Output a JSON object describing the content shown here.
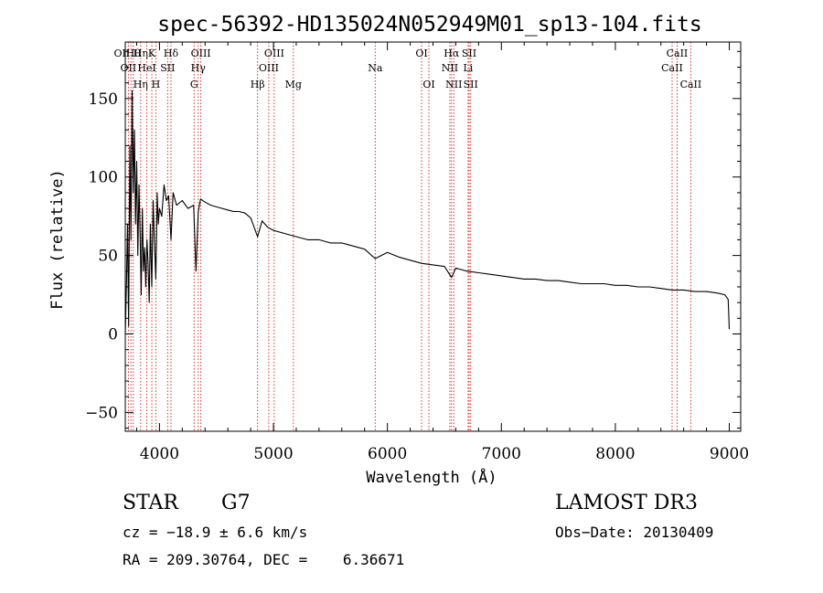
{
  "chart_data": {
    "type": "line",
    "title": "spec-56392-HD135024N052949M01_sp13-104.fits",
    "xlabel": "Wavelength (Å)",
    "ylabel": "Flux (relative)",
    "xlim": [
      3700,
      9100
    ],
    "ylim": [
      -62,
      186
    ],
    "xticks": [
      4000,
      5000,
      6000,
      7000,
      8000,
      9000
    ],
    "xtick_labels": [
      "4000",
      "5000",
      "6000",
      "7000",
      "8000",
      "9000"
    ],
    "yticks": [
      -50,
      0,
      50,
      100,
      150
    ],
    "ytick_labels": [
      "−50",
      "0",
      "50",
      "100",
      "150"
    ],
    "grid": false,
    "series": [
      {
        "name": "flux",
        "x": [
          3700,
          3710,
          3720,
          3730,
          3740,
          3750,
          3760,
          3770,
          3780,
          3790,
          3800,
          3810,
          3820,
          3830,
          3840,
          3850,
          3860,
          3870,
          3880,
          3890,
          3900,
          3910,
          3920,
          3933,
          3945,
          3955,
          3968,
          3980,
          3990,
          4000,
          4020,
          4040,
          4060,
          4080,
          4101,
          4120,
          4150,
          4200,
          4250,
          4300,
          4320,
          4340,
          4360,
          4400,
          4450,
          4500,
          4550,
          4600,
          4650,
          4700,
          4750,
          4800,
          4861,
          4900,
          4950,
          5000,
          5100,
          5200,
          5300,
          5400,
          5500,
          5600,
          5700,
          5800,
          5893,
          6000,
          6100,
          6200,
          6300,
          6400,
          6500,
          6563,
          6600,
          6700,
          6800,
          6900,
          7000,
          7100,
          7200,
          7300,
          7400,
          7500,
          7600,
          7700,
          7800,
          7900,
          8000,
          8100,
          8200,
          8300,
          8400,
          8500,
          8600,
          8700,
          8800,
          8900,
          8960,
          8990,
          9000
        ],
        "y": [
          0,
          30,
          70,
          5,
          120,
          60,
          155,
          90,
          130,
          70,
          110,
          50,
          95,
          65,
          25,
          80,
          40,
          55,
          30,
          60,
          45,
          20,
          70,
          30,
          85,
          60,
          35,
          90,
          70,
          80,
          75,
          95,
          85,
          88,
          60,
          90,
          82,
          85,
          80,
          82,
          40,
          78,
          86,
          84,
          82,
          81,
          80,
          79,
          78,
          78,
          77,
          74,
          62,
          72,
          68,
          66,
          64,
          62,
          60,
          60,
          58,
          58,
          56,
          54,
          48,
          52,
          49,
          47,
          45,
          44,
          43,
          36,
          42,
          40,
          39,
          38,
          37,
          36,
          35,
          35,
          34,
          34,
          33,
          32,
          32,
          32,
          31,
          31,
          30,
          30,
          29,
          28,
          28,
          27,
          27,
          26,
          25,
          22,
          3
        ]
      }
    ],
    "lines": [
      {
        "x": 3727,
        "labels": [
          "OII"
        ],
        "row": 1
      },
      {
        "x": 3750,
        "labels": [
          "OII",
          "Hη"
        ],
        "row": 0
      },
      {
        "x": 3770,
        "labels": [
          "Hθ"
        ],
        "row": 0
      },
      {
        "x": 3835,
        "labels": [
          "Hη"
        ],
        "row": 2
      },
      {
        "x": 3889,
        "labels": [
          "HeI"
        ],
        "row": 1
      },
      {
        "x": 3933,
        "labels": [
          "K"
        ],
        "row": 0
      },
      {
        "x": 3968,
        "labels": [
          "H"
        ],
        "row": 2
      },
      {
        "x": 4072,
        "labels": [
          "SII"
        ],
        "row": 1
      },
      {
        "x": 4101,
        "labels": [
          "Hδ"
        ],
        "row": 0
      },
      {
        "x": 4304,
        "labels": [
          "G"
        ],
        "row": 2
      },
      {
        "x": 4340,
        "labels": [
          "Hγ"
        ],
        "row": 1
      },
      {
        "x": 4363,
        "labels": [
          "OIII"
        ],
        "row": 0
      },
      {
        "x": 4861,
        "labels": [
          "Hβ"
        ],
        "row": 2
      },
      {
        "x": 4959,
        "labels": [
          "OIII"
        ],
        "row": 1
      },
      {
        "x": 5007,
        "labels": [
          "OIII"
        ],
        "row": 0
      },
      {
        "x": 5175,
        "labels": [
          "Mg"
        ],
        "row": 2
      },
      {
        "x": 5893,
        "labels": [
          "Na"
        ],
        "row": 1
      },
      {
        "x": 6300,
        "labels": [
          "OI"
        ],
        "row": 0
      },
      {
        "x": 6364,
        "labels": [
          "OI"
        ],
        "row": 2
      },
      {
        "x": 6548,
        "labels": [
          "NII"
        ],
        "row": 1
      },
      {
        "x": 6563,
        "labels": [
          "Hα"
        ],
        "row": 0
      },
      {
        "x": 6583,
        "labels": [
          "NII"
        ],
        "row": 2
      },
      {
        "x": 6708,
        "labels": [
          "Li"
        ],
        "row": 1
      },
      {
        "x": 6717,
        "labels": [
          "SII"
        ],
        "row": 0
      },
      {
        "x": 6731,
        "labels": [
          "SII"
        ],
        "row": 2
      },
      {
        "x": 8498,
        "labels": [
          "CaII"
        ],
        "row": 1
      },
      {
        "x": 8542,
        "labels": [
          "CaII"
        ],
        "row": 0
      },
      {
        "x": 8662,
        "labels": [
          "CaII"
        ],
        "row": 2
      }
    ]
  },
  "info": {
    "class": "STAR",
    "subclass": "G7",
    "survey": "LAMOST DR3",
    "cz": "cz = −18.9 ± 6.6 km/s",
    "obs_date": "Obs−Date: 20130409",
    "radec": "RA = 209.30764, DEC =    6.36671"
  }
}
